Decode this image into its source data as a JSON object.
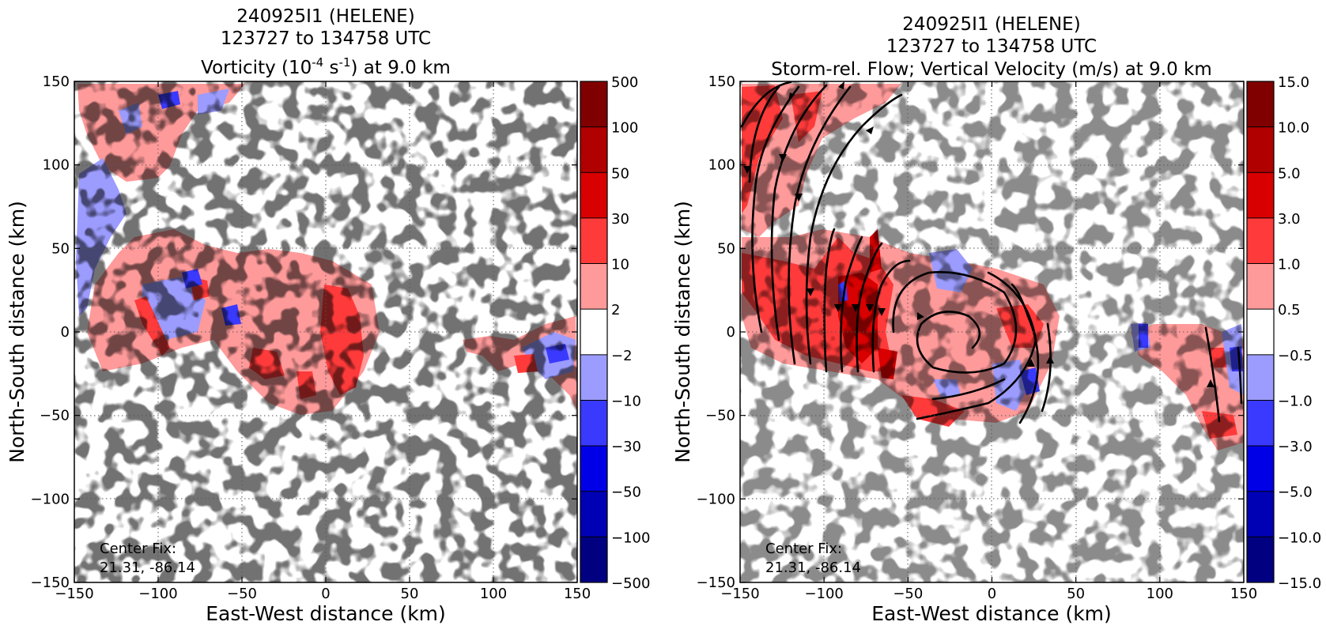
{
  "figure": {
    "panels": [
      {
        "title_lines": [
          "240925I1 (HELENE)",
          "123727 to 134758 UTC"
        ],
        "title_main_pre": "Vorticity (10",
        "title_exp1": "-4",
        "title_mid": " s",
        "title_exp2": "-1",
        "title_post": ") at 9.0 km",
        "xlabel": "East-West distance (km)",
        "ylabel": "North-South distance (km)",
        "center_fix_label": "Center Fix:",
        "center_fix_value": "21.31, -86.14"
      },
      {
        "title_lines": [
          "240925I1 (HELENE)",
          "123727 to 134758 UTC"
        ],
        "title_main": "Storm-rel. Flow; Vertical Velocity (m/s) at 9.0 km",
        "xlabel": "East-West distance (km)",
        "ylabel": "North-South distance (km)",
        "center_fix_label": "Center Fix:",
        "center_fix_value": "21.31, -86.14"
      }
    ]
  },
  "chart_data": [
    {
      "type": "heatmap",
      "variable": "Vorticity",
      "units": "10^-4 s^-1",
      "level": "9.0 km",
      "x_ticks": [
        "−150",
        "−100",
        "−50",
        "0",
        "50",
        "100",
        "150"
      ],
      "y_ticks": [
        "150",
        "100",
        "50",
        "0",
        "−50",
        "−100",
        "−150"
      ],
      "xlim": [
        -150,
        150
      ],
      "ylim": [
        -150,
        150
      ],
      "grid": true,
      "colorbar_levels": [
        "500",
        "100",
        "50",
        "30",
        "10",
        "2",
        "−2",
        "−10",
        "−30",
        "−50",
        "−100",
        "−500"
      ],
      "colorbar_colors": [
        "#800000",
        "#b00000",
        "#d80000",
        "#ff3a3a",
        "#ff9a9a",
        "#ffffff",
        "#9c9cff",
        "#3a3aff",
        "#0000e6",
        "#0000b4",
        "#000080"
      ],
      "center_fix": [
        21.31,
        -86.14
      ]
    },
    {
      "type": "heatmap",
      "variable": "Vertical Velocity",
      "units": "m/s",
      "overlay": "storm-relative flow streamlines",
      "level": "9.0 km",
      "x_ticks": [
        "−150",
        "−100",
        "−50",
        "0",
        "50",
        "100",
        "150"
      ],
      "y_ticks": [
        "150",
        "100",
        "50",
        "0",
        "−50",
        "−100",
        "−150"
      ],
      "xlim": [
        -150,
        150
      ],
      "ylim": [
        -150,
        150
      ],
      "grid": true,
      "colorbar_levels": [
        "15.0",
        "10.0",
        "5.0",
        "3.0",
        "1.0",
        "0.5",
        "−0.5",
        "−1.0",
        "−3.0",
        "−5.0",
        "−10.0",
        "−15.0"
      ],
      "colorbar_colors": [
        "#800000",
        "#b00000",
        "#d80000",
        "#ff3a3a",
        "#ff9a9a",
        "#ffffff",
        "#9c9cff",
        "#3a3aff",
        "#0000e6",
        "#0000b4",
        "#000080"
      ],
      "center_fix": [
        21.31,
        -86.14
      ]
    }
  ]
}
